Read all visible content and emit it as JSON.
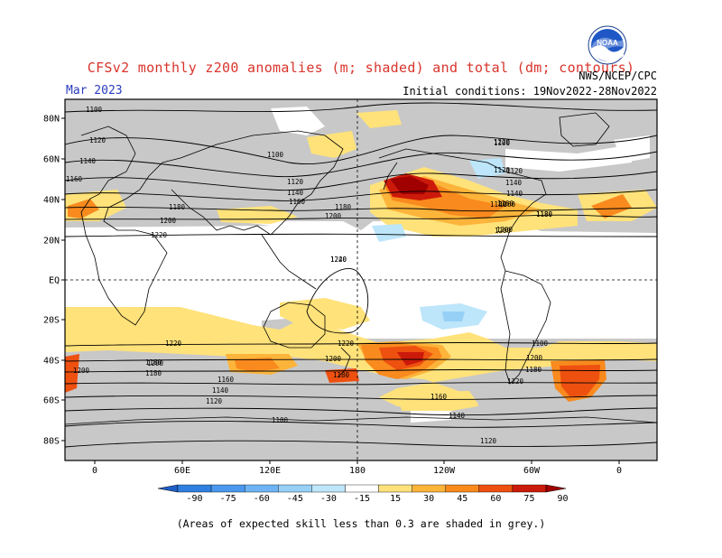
{
  "header": {
    "title": "CFSv2 monthly z200 anomalies (m; shaded) and total (dm; contours)",
    "valid_month": "Mar 2023",
    "agency": "NWS/NCEP/CPC",
    "initial_conditions": "Initial conditions: 19Nov2022-28Nov2022"
  },
  "logo": {
    "text": "NOAA",
    "name": "noaa-logo"
  },
  "map": {
    "lat_labels": [
      "80N",
      "60N",
      "40N",
      "20N",
      "EQ",
      "20S",
      "40S",
      "60S",
      "80S"
    ],
    "lon_labels": [
      "0",
      "60E",
      "120E",
      "180",
      "120W",
      "60W",
      "0"
    ],
    "contour_labels": [
      "1100",
      "1120",
      "1140",
      "1160",
      "1180",
      "1200",
      "1220",
      "1240",
      "1200",
      "1180",
      "1160",
      "1140",
      "1120",
      "1100",
      "1120",
      "1140",
      "1160",
      "1180",
      "1200",
      "1220",
      "1100",
      "1120",
      "1140",
      "1160",
      "1180",
      "1200",
      "1220",
      "1220",
      "1200",
      "1180",
      "1160",
      "1140",
      "1120",
      "1100",
      "1220",
      "1200",
      "1180",
      "1160",
      "1140",
      "1120",
      "1100",
      "1200",
      "1180",
      "1220",
      "1200",
      "1180",
      "1180"
    ],
    "colors": {
      "grey_mask": "#c8c8c8",
      "ocean_land_bg": "#ffffff",
      "contour": "#000000"
    }
  },
  "colorbar": {
    "labels": [
      "-90",
      "-75",
      "-60",
      "-45",
      "-30",
      "-15",
      "15",
      "30",
      "45",
      "60",
      "75",
      "90"
    ],
    "colors": [
      "#1f5fc8",
      "#2f7fe0",
      "#4a98ee",
      "#6eb4f5",
      "#96d0f7",
      "#bde6fa",
      "#ffffff",
      "#ffe27a",
      "#fdb43a",
      "#f98a1e",
      "#ee5010",
      "#cc1a0a",
      "#a00000"
    ]
  },
  "footnote": "(Areas of expected skill less than 0.3 are shaded in grey.)"
}
